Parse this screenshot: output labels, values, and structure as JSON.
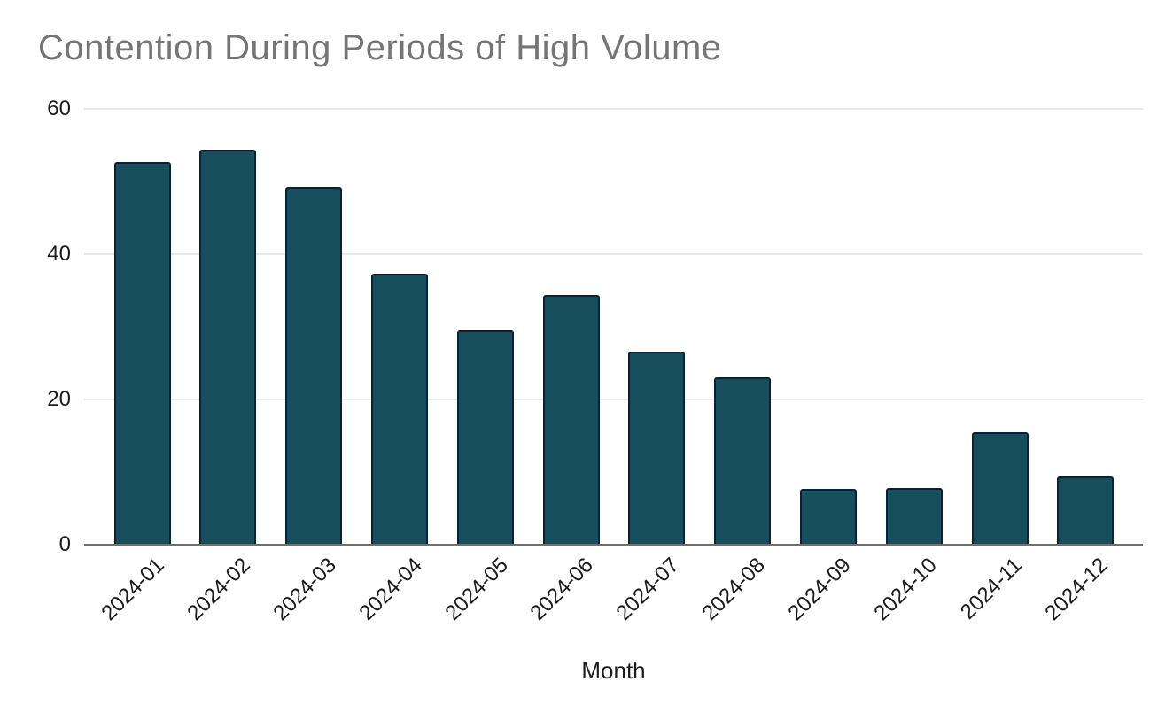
{
  "chart": {
    "colors": {
      "background": "#ffffff",
      "bar_fill": "#164e5d",
      "bar_border": "#0a2236",
      "gridline": "#e9e9e9",
      "axis_line": "#6f6f6f",
      "title_text": "#757575",
      "tick_text": "#1c1c1c"
    }
  },
  "chart_data": {
    "type": "bar",
    "title": "Contention During Periods of High Volume",
    "xlabel": "Month",
    "ylabel": "",
    "categories": [
      "2024-01",
      "2024-02",
      "2024-03",
      "2024-04",
      "2024-05",
      "2024-06",
      "2024-07",
      "2024-08",
      "2024-09",
      "2024-10",
      "2024-11",
      "2024-12"
    ],
    "values": [
      52.7,
      54.4,
      49.3,
      37.3,
      29.5,
      34.4,
      26.6,
      23.0,
      7.7,
      7.8,
      15.5,
      9.4
    ],
    "ylim": [
      0,
      60
    ],
    "yticks": [
      0,
      20,
      40,
      60
    ],
    "grid": true,
    "legend": false
  }
}
